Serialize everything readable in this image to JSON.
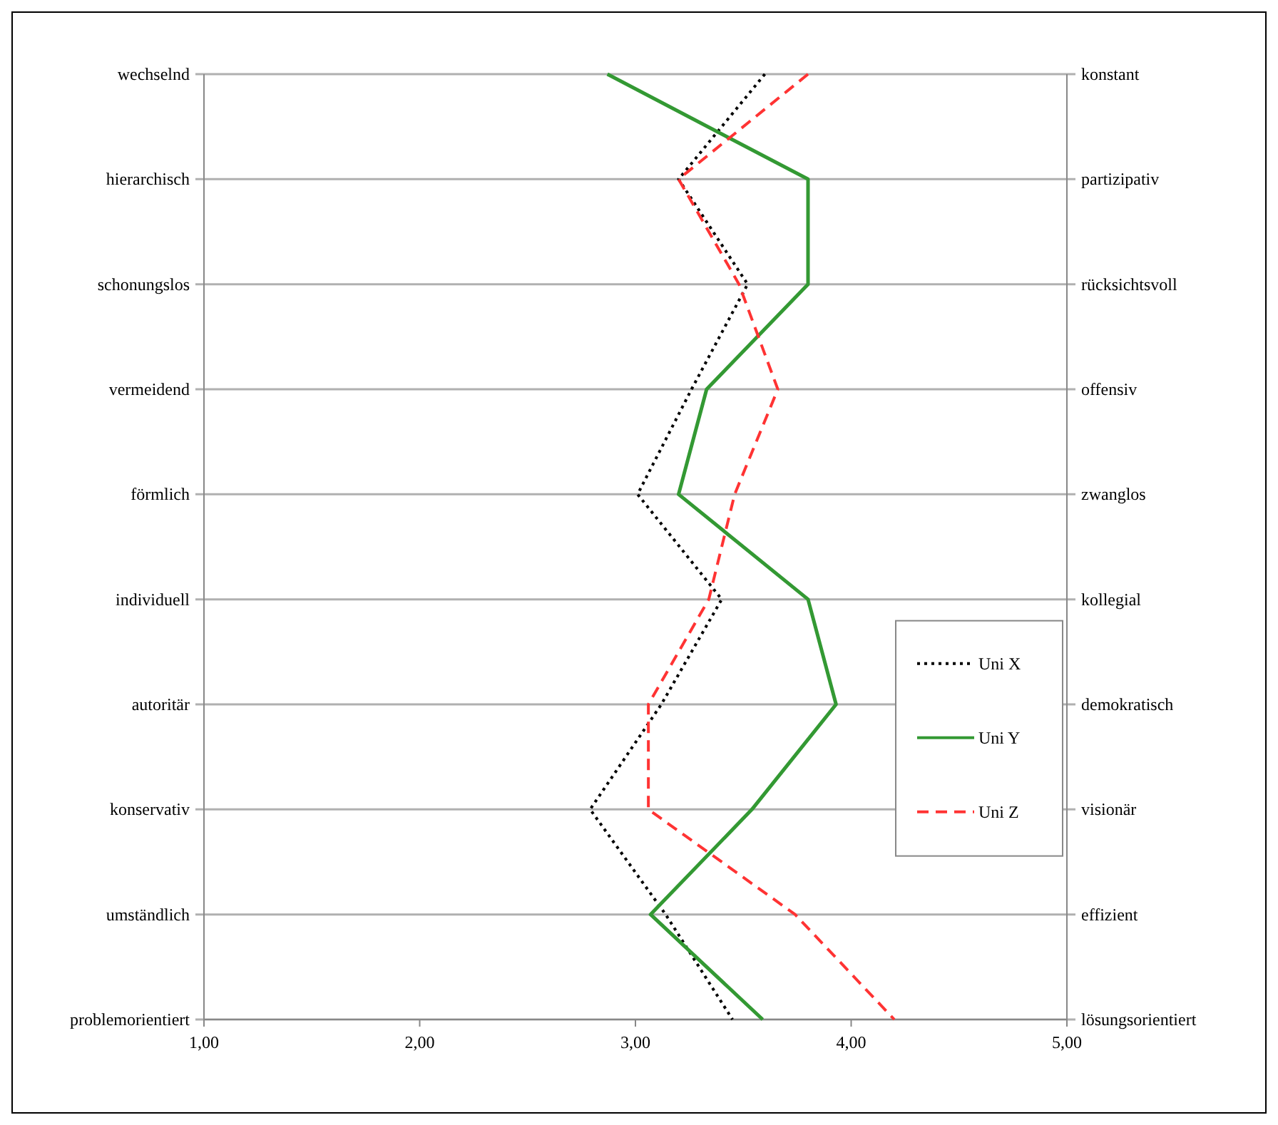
{
  "chart_data": {
    "type": "line",
    "orientation": "horizontal",
    "categories": [
      "wechselnd",
      "hierarchisch",
      "schonungslos",
      "vermeidend",
      "förmlich",
      "individuell",
      "autoritär",
      "konservativ",
      "umständlich",
      "problemorientiert"
    ],
    "y2_categories": [
      "konstant",
      "partizipativ",
      "rücksichtsvoll",
      "offensiv",
      "zwanglos",
      "kollegial",
      "demokratisch",
      "visionär",
      "effizient",
      "lösungsorientiert"
    ],
    "series": [
      {
        "name": "Uni X",
        "color": "#000000",
        "line_style": "dotted",
        "values": [
          3.6,
          3.2,
          3.52,
          3.26,
          3.01,
          3.4,
          3.12,
          2.79,
          3.14,
          3.45
        ]
      },
      {
        "name": "Uni Y",
        "color": "#339933",
        "line_style": "solid",
        "values": [
          2.87,
          3.8,
          3.8,
          3.33,
          3.2,
          3.8,
          3.93,
          3.54,
          3.07,
          3.59
        ]
      },
      {
        "name": "Uni Z",
        "color": "#ff3333",
        "line_style": "dashed",
        "values": [
          3.8,
          3.2,
          3.48,
          3.66,
          3.46,
          3.34,
          3.06,
          3.06,
          3.74,
          4.2
        ]
      }
    ],
    "xlim": [
      1,
      5
    ],
    "xticks": [
      {
        "value": 1,
        "label": "1,00"
      },
      {
        "value": 2,
        "label": "2,00"
      },
      {
        "value": 3,
        "label": "3,00"
      },
      {
        "value": 4,
        "label": "4,00"
      },
      {
        "value": 5,
        "label": "5,00"
      }
    ],
    "grid": "y",
    "legend": "right"
  }
}
